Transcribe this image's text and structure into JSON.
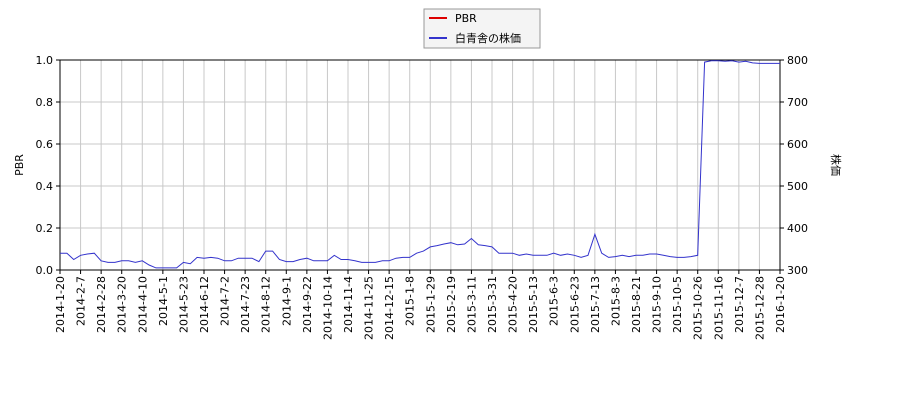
{
  "chart_data": {
    "type": "line",
    "y_label": "PBR",
    "y2_label": "株価",
    "categories": [
      "2014-1-20",
      null,
      null,
      "2014-2-7",
      null,
      null,
      "2014-2-28",
      null,
      null,
      "2014-3-20",
      null,
      null,
      "2014-4-10",
      null,
      null,
      "2014-5-1",
      null,
      null,
      "2014-5-23",
      null,
      null,
      "2014-6-12",
      null,
      null,
      "2014-7-2",
      null,
      null,
      "2014-7-23",
      null,
      null,
      "2014-8-12",
      null,
      null,
      "2014-9-1",
      null,
      null,
      "2014-9-22",
      null,
      null,
      "2014-10-14",
      null,
      null,
      "2014-11-4",
      null,
      null,
      "2014-11-25",
      null,
      null,
      "2014-12-15",
      null,
      null,
      "2015-1-8",
      null,
      null,
      "2015-1-29",
      null,
      null,
      "2015-2-19",
      null,
      null,
      "2015-3-11",
      null,
      null,
      "2015-3-31",
      null,
      null,
      "2015-4-20",
      null,
      null,
      "2015-5-13",
      null,
      null,
      "2015-6-3",
      null,
      null,
      "2015-6-23",
      null,
      null,
      "2015-7-13",
      null,
      null,
      "2015-8-3",
      null,
      null,
      "2015-8-21",
      null,
      null,
      "2015-9-10",
      null,
      null,
      "2015-10-5",
      null,
      null,
      "2015-10-26",
      null,
      null,
      "2015-11-16",
      null,
      null,
      "2015-12-7",
      null,
      null,
      "2015-12-28",
      null,
      null,
      "2016-1-20"
    ],
    "series": [
      {
        "name": "PBR",
        "color": "#dd0000",
        "values": [
          null,
          null,
          null,
          null,
          null,
          null,
          null,
          null,
          null,
          null,
          null,
          null,
          null,
          null,
          null,
          null,
          null,
          null,
          null,
          null,
          null,
          null,
          null,
          null,
          null,
          null,
          null,
          null,
          null,
          null,
          null,
          null,
          null,
          null,
          null,
          null,
          null,
          null,
          null,
          null,
          null,
          null,
          null,
          null,
          null,
          null,
          null,
          null,
          null,
          null,
          null,
          null,
          null,
          null,
          null,
          null,
          null,
          null,
          null,
          null,
          null,
          null,
          null,
          null,
          null,
          null,
          null,
          null,
          null,
          null,
          null,
          null,
          null,
          null,
          null,
          null,
          null,
          null,
          null,
          null,
          null,
          null,
          null,
          null,
          null,
          null,
          null,
          null,
          null,
          null,
          null,
          null,
          null,
          null,
          null,
          null,
          null,
          null,
          null,
          null,
          null,
          null,
          null,
          null,
          null,
          null
        ]
      },
      {
        "name": "白青舎の株価",
        "color": "#3333cc",
        "axis": "y2",
        "values": [
          340,
          340,
          325,
          335,
          338,
          340,
          322,
          318,
          318,
          322,
          322,
          318,
          322,
          312,
          305,
          305,
          305,
          305,
          318,
          315,
          330,
          328,
          330,
          328,
          322,
          322,
          328,
          328,
          328,
          320,
          345,
          345,
          325,
          320,
          320,
          325,
          328,
          322,
          322,
          322,
          335,
          325,
          325,
          322,
          318,
          318,
          318,
          322,
          322,
          328,
          330,
          330,
          340,
          345,
          355,
          358,
          362,
          365,
          360,
          362,
          375,
          360,
          358,
          355,
          340,
          340,
          340,
          335,
          338,
          335,
          335,
          335,
          340,
          335,
          338,
          335,
          330,
          335,
          385,
          340,
          330,
          332,
          335,
          332,
          335,
          335,
          338,
          338,
          335,
          332,
          330,
          330,
          332,
          335,
          795,
          798,
          798,
          797,
          798,
          795,
          797,
          793,
          792,
          792,
          792,
          792
        ]
      }
    ],
    "ylim": [
      0,
      1
    ],
    "yticks": [
      {
        "value": 0,
        "label": "0.0"
      },
      {
        "value": 0.2,
        "label": "0.2"
      },
      {
        "value": 0.4,
        "label": "0.4"
      },
      {
        "value": 0.6,
        "label": "0.6"
      },
      {
        "value": 0.8,
        "label": "0.8"
      },
      {
        "value": 1,
        "label": "1.0"
      }
    ],
    "y2lim": [
      300,
      800
    ],
    "y2ticks": [
      300,
      400,
      500,
      600,
      700,
      800
    ],
    "grid": true
  }
}
